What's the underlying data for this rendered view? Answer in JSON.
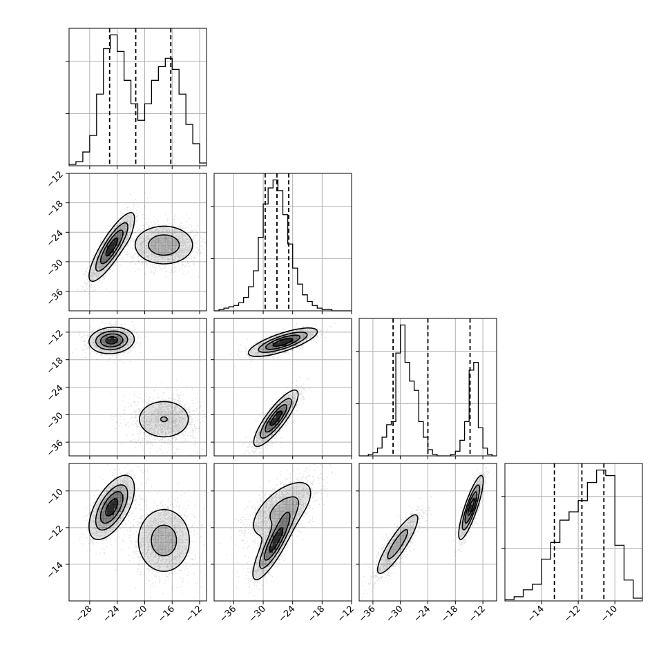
{
  "chart_data": {
    "type": "corner",
    "n_parameters": 4,
    "axis_labels": [],
    "grid": true,
    "colors": {
      "ink": "#000000",
      "grid": "#b0b0b0",
      "density": "#000000",
      "background": "#ffffff"
    },
    "quantile_style": "dashed",
    "parameters": [
      {
        "index": 0,
        "range": [
          -31,
          -11
        ],
        "ticks": [
          -28,
          -24,
          -20,
          -16,
          -12
        ],
        "tick_labels": [
          "−28",
          "−24",
          "−20",
          "−16",
          "−12"
        ],
        "quantiles": [
          -25.1,
          -21.3,
          -16.2
        ],
        "histogram": {
          "bin_edges": [
            -31,
            -30,
            -29,
            -28,
            -27,
            -26,
            -25,
            -24,
            -23,
            -22,
            -21,
            -20,
            -19,
            -18,
            -17,
            -16,
            -15,
            -14,
            -13,
            -12,
            -11
          ],
          "counts": [
            1,
            3,
            10,
            22,
            52,
            85,
            95,
            83,
            62,
            45,
            33,
            45,
            62,
            72,
            78,
            70,
            52,
            30,
            16,
            2
          ]
        }
      },
      {
        "index": 1,
        "range": [
          -40,
          -12
        ],
        "ticks": [
          -36,
          -30,
          -24,
          -18,
          -12
        ],
        "tick_labels": [
          "−36",
          "−30",
          "−24",
          "−18",
          "−12"
        ],
        "quantiles": [
          -29.6,
          -27.2,
          -24.8
        ],
        "histogram": {
          "bin_edges": [
            -40,
            -39,
            -38,
            -37,
            -36,
            -35,
            -34,
            -33,
            -32,
            -31,
            -30,
            -29,
            -28,
            -27,
            -26,
            -25,
            -24,
            -23,
            -22,
            -21,
            -20,
            -19,
            -18,
            -17,
            -16,
            -15,
            -14,
            -13,
            -12
          ],
          "counts": [
            0,
            1,
            2,
            3,
            4,
            6,
            10,
            18,
            30,
            55,
            80,
            92,
            98,
            90,
            72,
            50,
            32,
            20,
            12,
            7,
            4,
            2,
            1,
            1,
            0,
            0,
            0,
            0
          ]
        }
      },
      {
        "index": 2,
        "range": [
          -39,
          -9
        ],
        "ticks": [
          -36,
          -30,
          -24,
          -18,
          -12
        ],
        "tick_labels": [
          "−36",
          "−30",
          "−24",
          "−18",
          "−12"
        ],
        "quantiles": [
          -31.6,
          -24.0,
          -14.8
        ],
        "histogram": {
          "bin_edges": [
            -39,
            -38,
            -37,
            -36,
            -35,
            -34,
            -33,
            -32,
            -31,
            -30,
            -29,
            -28,
            -27,
            -26,
            -25,
            -24,
            -23,
            -22,
            -21,
            -20,
            -19,
            -18,
            -17,
            -16,
            -15,
            -14,
            -13,
            -12,
            -11,
            -10,
            -9
          ],
          "counts": [
            0,
            0,
            1,
            2,
            5,
            12,
            20,
            22,
            66,
            84,
            60,
            48,
            42,
            22,
            12,
            4,
            1,
            0,
            0,
            0,
            1,
            3,
            10,
            22,
            55,
            60,
            18,
            5,
            1,
            0
          ]
        }
      },
      {
        "index": 3,
        "range": [
          -16,
          -8.5
        ],
        "ticks": [
          -14,
          -12,
          -10
        ],
        "tick_labels": [
          "−14",
          "−12",
          "−10"
        ],
        "quantiles": [
          -13.3,
          -11.8,
          -10.6
        ],
        "histogram": {
          "bin_edges": [
            -16,
            -15.5,
            -15,
            -14.5,
            -14,
            -13.5,
            -13,
            -12.5,
            -12,
            -11.5,
            -11,
            -10.5,
            -10,
            -9.5,
            -9,
            -8.5
          ],
          "counts": [
            1,
            3,
            8,
            12,
            30,
            42,
            58,
            64,
            72,
            85,
            94,
            90,
            40,
            15,
            2
          ]
        }
      }
    ],
    "histogram_y_ticks": 2,
    "pairs": [
      {
        "x_param": 0,
        "y_param": 1,
        "clusters": [
          {
            "mean": [
              -24.8,
              -27.0
            ],
            "sd": [
              1.6,
              3.4
            ],
            "corr": 0.85,
            "weight": 0.5
          },
          {
            "mean": [
              -17.2,
              -26.6
            ],
            "sd": [
              2.4,
              2.2
            ],
            "corr": 0.0,
            "weight": 0.5
          }
        ]
      },
      {
        "x_param": 0,
        "y_param": 2,
        "clusters": [
          {
            "mean": [
              -24.8,
              -13.8
            ],
            "sd": [
              1.6,
              1.4
            ],
            "corr": 0.1,
            "weight": 0.5
          },
          {
            "mean": [
              -17.2,
              -31.0
            ],
            "sd": [
              2.4,
              2.6
            ],
            "corr": 0.0,
            "weight": 0.5
          }
        ]
      },
      {
        "x_param": 0,
        "y_param": 3,
        "clusters": [
          {
            "mean": [
              -24.8,
              -10.9
            ],
            "sd": [
              1.6,
              0.85
            ],
            "corr": 0.6,
            "weight": 0.5
          },
          {
            "mean": [
              -17.2,
              -12.7
            ],
            "sd": [
              2.2,
              1.0
            ],
            "corr": 0.0,
            "weight": 0.5
          }
        ]
      },
      {
        "x_param": 1,
        "y_param": 2,
        "clusters": [
          {
            "mean": [
              -26.0,
              -14.2
            ],
            "sd": [
              3.4,
              1.5
            ],
            "corr": 0.75,
            "weight": 0.5
          },
          {
            "mean": [
              -27.4,
              -30.8
            ],
            "sd": [
              2.2,
              3.0
            ],
            "corr": 0.85,
            "weight": 0.5
          }
        ]
      },
      {
        "x_param": 1,
        "y_param": 3,
        "clusters": [
          {
            "mean": [
              -26.2,
              -11.0
            ],
            "sd": [
              3.6,
              0.9
            ],
            "corr": 0.6,
            "weight": 0.5
          },
          {
            "mean": [
              -27.6,
              -12.8
            ],
            "sd": [
              2.2,
              1.0
            ],
            "corr": 0.85,
            "weight": 0.5
          }
        ]
      },
      {
        "x_param": 2,
        "y_param": 3,
        "clusters": [
          {
            "mean": [
              -30.6,
              -12.9
            ],
            "sd": [
              2.6,
              0.95
            ],
            "corr": 0.88,
            "weight": 0.5
          },
          {
            "mean": [
              -14.6,
              -10.9
            ],
            "sd": [
              1.3,
              0.85
            ],
            "corr": 0.85,
            "weight": 0.5
          }
        ]
      }
    ],
    "contour_levels": [
      0.12,
      0.35,
      0.6,
      0.86
    ]
  }
}
